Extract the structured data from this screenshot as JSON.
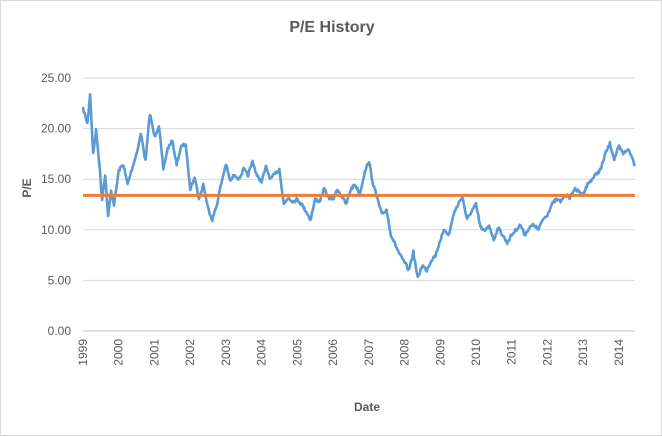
{
  "chart_data": {
    "type": "line",
    "title": "P/E History",
    "xlabel": "Date",
    "ylabel": "P/E",
    "xlim": [
      "1999-01-01",
      "2014-06-15"
    ],
    "ylim": [
      0,
      25
    ],
    "y_ticks": [
      "0.00",
      "5.00",
      "10.00",
      "15.00",
      "20.00",
      "25.00"
    ],
    "x_ticks": [
      "1999",
      "2000",
      "2001",
      "2002",
      "2003",
      "2004",
      "2005",
      "2006",
      "2007",
      "2008",
      "2009",
      "2010",
      "2011",
      "2012",
      "2013",
      "2014"
    ],
    "grid": "horizontal",
    "legend": "none",
    "series": [
      {
        "color": "#5b9bd5",
        "x": [
          "1999-01-01",
          "1999-02-15",
          "1999-03-15",
          "1999-04-15",
          "1999-05-15",
          "1999-06-15",
          "1999-07-15",
          "1999-08-15",
          "1999-09-15",
          "1999-10-15",
          "1999-11-15",
          "2000-01-01",
          "2000-02-15",
          "2000-04-01",
          "2000-05-15",
          "2000-07-01",
          "2000-08-15",
          "2000-10-01",
          "2000-11-15",
          "2001-01-01",
          "2001-02-15",
          "2001-04-01",
          "2001-05-15",
          "2001-07-01",
          "2001-08-15",
          "2001-10-01",
          "2001-11-15",
          "2002-01-01",
          "2002-02-15",
          "2002-04-01",
          "2002-05-15",
          "2002-07-01",
          "2002-08-15",
          "2002-10-01",
          "2002-11-15",
          "2003-01-01",
          "2003-02-15",
          "2003-04-01",
          "2003-05-15",
          "2003-07-01",
          "2003-08-15",
          "2003-10-01",
          "2003-11-15",
          "2004-01-01",
          "2004-02-15",
          "2004-04-01",
          "2004-05-15",
          "2004-07-01",
          "2004-08-15",
          "2004-10-01",
          "2004-11-15",
          "2005-01-01",
          "2005-02-15",
          "2005-04-01",
          "2005-05-15",
          "2005-07-01",
          "2005-08-15",
          "2005-10-01",
          "2005-11-15",
          "2006-01-01",
          "2006-02-15",
          "2006-04-01",
          "2006-05-15",
          "2006-07-01",
          "2006-08-15",
          "2006-10-01",
          "2006-11-15",
          "2007-01-01",
          "2007-02-15",
          "2007-04-01",
          "2007-05-15",
          "2007-07-01",
          "2007-08-15",
          "2007-10-01",
          "2007-11-15",
          "2008-01-01",
          "2008-02-15",
          "2008-04-01",
          "2008-05-15",
          "2008-07-01",
          "2008-08-15",
          "2008-10-01",
          "2008-11-15",
          "2009-01-01",
          "2009-02-15",
          "2009-04-01",
          "2009-05-15",
          "2009-07-01",
          "2009-08-15",
          "2009-10-01",
          "2009-11-15",
          "2010-01-01",
          "2010-02-15",
          "2010-04-01",
          "2010-05-15",
          "2010-07-01",
          "2010-08-15",
          "2010-10-01",
          "2010-11-15",
          "2011-01-01",
          "2011-02-15",
          "2011-04-01",
          "2011-05-15",
          "2011-07-01",
          "2011-08-15",
          "2011-10-01",
          "2011-11-15",
          "2012-01-01",
          "2012-02-15",
          "2012-04-01",
          "2012-05-15",
          "2012-07-01",
          "2012-08-15",
          "2012-10-01",
          "2012-11-15",
          "2013-01-01",
          "2013-02-15",
          "2013-04-01",
          "2013-05-15",
          "2013-07-01",
          "2013-08-15",
          "2013-10-01",
          "2013-11-15",
          "2014-01-01",
          "2014-02-15",
          "2014-04-01",
          "2014-05-15",
          "2014-06-15"
        ],
        "y": [
          22.0,
          20.5,
          23.4,
          17.5,
          19.8,
          16.8,
          13.0,
          15.5,
          11.3,
          13.8,
          12.5,
          15.8,
          16.5,
          14.5,
          16.0,
          17.5,
          19.5,
          16.8,
          21.5,
          19.2,
          20.3,
          16.0,
          18.0,
          18.8,
          16.5,
          18.2,
          18.5,
          14.0,
          15.3,
          13.0,
          14.5,
          12.2,
          11.0,
          12.5,
          14.6,
          16.5,
          14.8,
          15.5,
          15.0,
          16.0,
          15.4,
          16.8,
          15.3,
          14.8,
          16.2,
          15.0,
          15.5,
          16.0,
          12.5,
          13.2,
          12.8,
          13.0,
          12.5,
          11.8,
          11.0,
          13.0,
          12.8,
          14.0,
          13.2,
          13.0,
          14.0,
          13.3,
          12.5,
          14.0,
          14.5,
          13.5,
          15.5,
          16.8,
          14.5,
          13.0,
          11.5,
          12.0,
          9.5,
          8.5,
          7.5,
          6.8,
          6.0,
          7.8,
          5.2,
          6.5,
          6.0,
          7.0,
          7.5,
          9.0,
          10.0,
          9.5,
          11.5,
          12.5,
          13.3,
          11.0,
          11.8,
          12.5,
          10.3,
          9.8,
          10.5,
          9.0,
          10.2,
          9.5,
          8.7,
          9.5,
          10.0,
          10.5,
          9.5,
          10.2,
          10.5,
          10.0,
          11.0,
          11.5,
          12.5,
          13.0,
          12.8,
          13.5,
          13.2,
          14.0,
          13.8,
          13.5,
          14.5,
          15.0,
          15.5,
          16.0,
          17.5,
          18.5,
          17.0,
          18.2,
          17.5,
          18.0,
          17.2,
          16.3
        ]
      },
      {
        "color": "#ed7d31",
        "x": [
          "1999-01-01",
          "2014-06-15"
        ],
        "y": [
          13.4,
          13.4
        ]
      }
    ]
  }
}
